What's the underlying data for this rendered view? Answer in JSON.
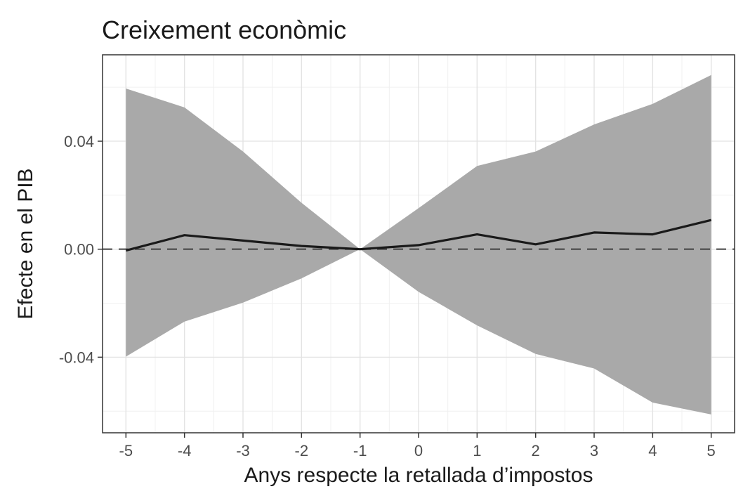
{
  "chart_data": {
    "type": "line",
    "title": "Creixement econòmic",
    "xlabel": "Anys respecte la retallada d’impostos",
    "ylabel": "Efecte en el PIB",
    "x": [
      -5,
      -4,
      -3,
      -2,
      -1,
      0,
      1,
      2,
      3,
      4,
      5
    ],
    "x_tick_labels": [
      "-5",
      "-4",
      "-3",
      "-2",
      "-1",
      "0",
      "1",
      "2",
      "3",
      "4",
      "5"
    ],
    "y_ticks": [
      -0.04,
      0.0,
      0.04
    ],
    "y_tick_labels": [
      "-0.04",
      "0.00",
      "0.04"
    ],
    "xlim": [
      -5.4,
      5.4
    ],
    "ylim": [
      -0.068,
      0.072
    ],
    "series": [
      {
        "values": [
          -0.0005,
          0.0052,
          0.0032,
          0.0012,
          0.0,
          0.0015,
          0.0055,
          0.0018,
          0.0062,
          0.0055,
          0.0108
        ],
        "lower": [
          -0.0398,
          -0.0268,
          -0.0198,
          -0.0108,
          0.0,
          -0.0158,
          -0.0282,
          -0.0388,
          -0.0442,
          -0.0568,
          -0.0612
        ],
        "upper": [
          0.0595,
          0.0525,
          0.0362,
          0.0172,
          0.0,
          0.0152,
          0.0308,
          0.0362,
          0.0462,
          0.0538,
          0.0645
        ],
        "line_color": "#1a1a1a",
        "band_color": "#a9a9a9"
      }
    ],
    "reference_line": {
      "y": 0.0,
      "style": "dashed",
      "color": "#404040"
    },
    "grid": true,
    "theme": "bw"
  }
}
